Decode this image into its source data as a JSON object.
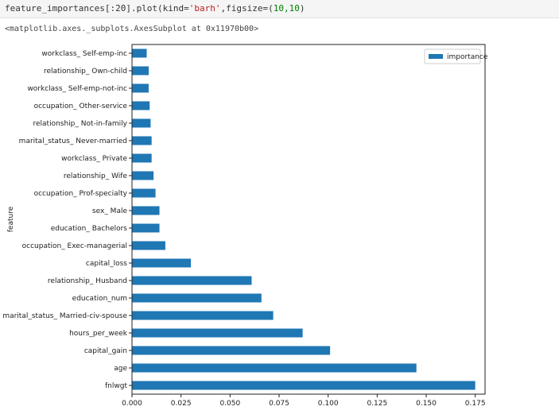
{
  "code_cell": {
    "line_prefix": "feature_importances[:20].plot(kind=",
    "kind_value": "'barh'",
    "mid": ",figsize=(",
    "figsize": "10,10",
    "suffix": ")"
  },
  "output_text": "<matplotlib.axes._subplots.AxesSubplot at 0x11970b00>",
  "chart_data": {
    "type": "bar",
    "orientation": "horizontal",
    "ylabel": "feature",
    "xlabel": "",
    "xlim": [
      0,
      0.18
    ],
    "xticks": [
      "0.000",
      "0.025",
      "0.050",
      "0.075",
      "0.100",
      "0.125",
      "0.150",
      "0.175"
    ],
    "legend": {
      "placement": "top-right",
      "entries": [
        "importance"
      ]
    },
    "color": "#1f77b4",
    "series": [
      {
        "name": "importance",
        "categories": [
          "fnlwgt",
          "age",
          "capital_gain",
          "hours_per_week",
          "marital_status_ Married-civ-spouse",
          "education_num",
          "relationship_ Husband",
          "capital_loss",
          "occupation_ Exec-managerial",
          "education_ Bachelors",
          "sex_ Male",
          "occupation_ Prof-specialty",
          "relationship_ Wife",
          "workclass_ Private",
          "marital_status_ Never-married",
          "relationship_ Not-in-family",
          "occupation_ Other-service",
          "workclass_ Self-emp-not-inc",
          "relationship_ Own-child",
          "workclass_ Self-emp-inc"
        ],
        "values": [
          0.175,
          0.145,
          0.101,
          0.087,
          0.072,
          0.066,
          0.061,
          0.03,
          0.017,
          0.014,
          0.014,
          0.012,
          0.011,
          0.01,
          0.01,
          0.0095,
          0.009,
          0.0085,
          0.0085,
          0.0075
        ]
      }
    ]
  }
}
